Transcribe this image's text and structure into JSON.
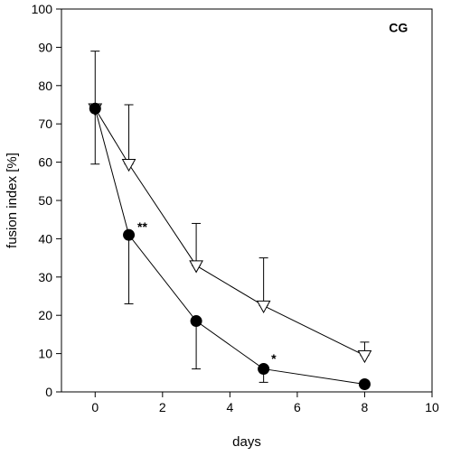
{
  "chart_data": {
    "type": "line",
    "xlabel": "days",
    "ylabel": "fusion index [%]",
    "xlim": [
      -1,
      10
    ],
    "ylim": [
      0,
      100
    ],
    "xticks": [
      0,
      2,
      4,
      6,
      8,
      10
    ],
    "yticks": [
      0,
      10,
      20,
      30,
      40,
      50,
      60,
      70,
      80,
      90,
      100
    ],
    "grid": false,
    "series": [
      {
        "marker": "circle-filled",
        "x": [
          0,
          1,
          3,
          5,
          8
        ],
        "y": [
          74,
          41,
          18.5,
          6,
          2
        ],
        "err_low": [
          74,
          23,
          6,
          2.5,
          2
        ],
        "err_high": [
          74,
          41,
          18.5,
          6,
          2
        ]
      },
      {
        "marker": "triangle-down-open",
        "x": [
          0,
          1,
          3,
          5,
          8
        ],
        "y": [
          74,
          59.5,
          33,
          22.5,
          9.5
        ],
        "err_low": [
          59.5,
          59.5,
          33,
          22.5,
          9.5
        ],
        "err_high": [
          89,
          75,
          44,
          35,
          13
        ]
      }
    ],
    "annotations": [
      {
        "text": "CG",
        "x": 9,
        "y": 94
      },
      {
        "text": "**",
        "x": 1.4,
        "y": 42
      },
      {
        "text": "*",
        "x": 5.3,
        "y": 7.5
      }
    ]
  }
}
